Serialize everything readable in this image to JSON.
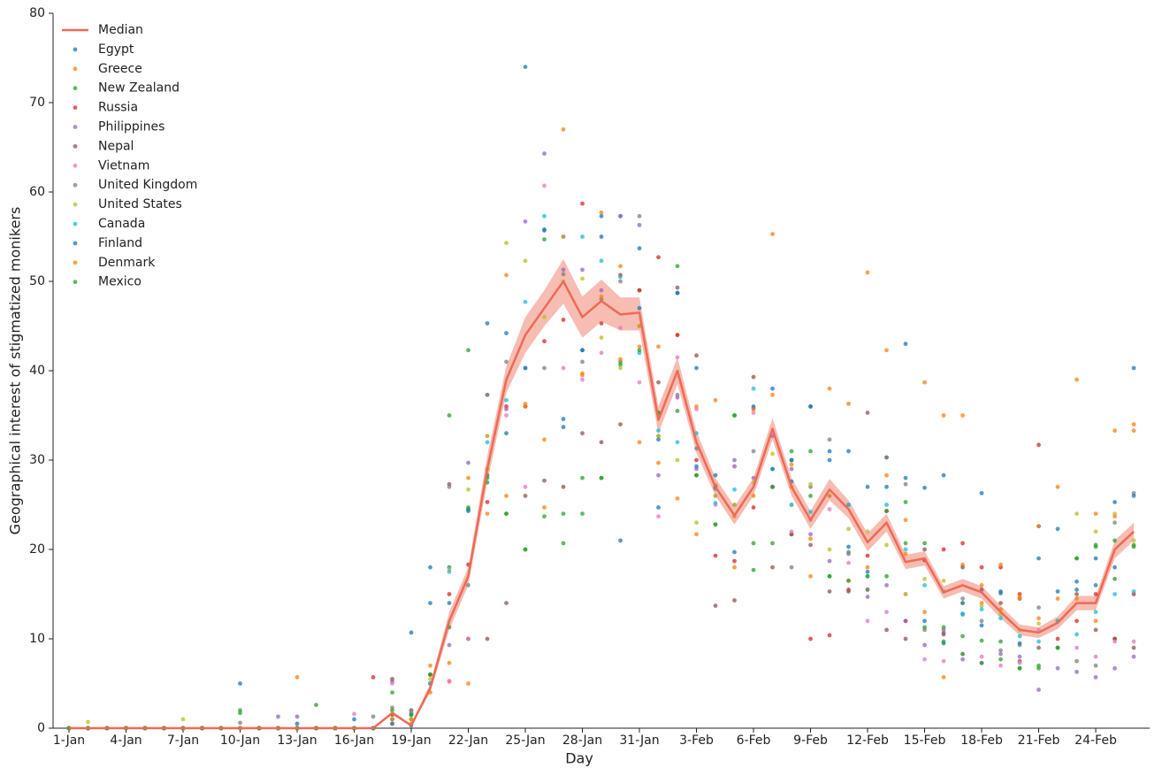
{
  "chart_data": {
    "type": "scatter",
    "xlabel": "Day",
    "ylabel": "Geographical interest of stigmatized monikers",
    "categories": [
      "1-Jan",
      null,
      null,
      "4-Jan",
      null,
      null,
      "7-Jan",
      null,
      null,
      "10-Jan",
      null,
      null,
      "13-Jan",
      null,
      null,
      "16-Jan",
      null,
      null,
      "19-Jan",
      null,
      null,
      "22-Jan",
      null,
      null,
      "25-Jan",
      null,
      null,
      "28-Jan",
      null,
      null,
      "31-Jan",
      null,
      null,
      "3-Feb",
      null,
      null,
      "6-Feb",
      null,
      null,
      "9-Feb",
      null,
      null,
      "12-Feb",
      null,
      null,
      "15-Feb",
      null,
      null,
      "18-Feb",
      null,
      null,
      "21-Feb",
      null,
      null,
      "24-Feb",
      null,
      null
    ],
    "ylim": [
      0,
      80
    ],
    "yticks": [
      0,
      10,
      20,
      30,
      40,
      50,
      60,
      70,
      80
    ],
    "legend": "upper left",
    "median": {
      "name": "Median",
      "color": "#ee6a55",
      "values": [
        0,
        0,
        0,
        0,
        0,
        0,
        0,
        0,
        0,
        0,
        0,
        0,
        0,
        0,
        0,
        0,
        0,
        1.7,
        0.3,
        4.5,
        12,
        17,
        29,
        39,
        44,
        47,
        50,
        46,
        47.8,
        46.3,
        46.5,
        34.5,
        40,
        32,
        27,
        23.8,
        27,
        33.5,
        27,
        23.3,
        26.7,
        24.5,
        20.8,
        23,
        18.6,
        19,
        15.2,
        16,
        15.2,
        13,
        11,
        10.7,
        11.8,
        14,
        14,
        20,
        22
      ]
    },
    "band": {
      "lower": [
        0,
        0,
        0,
        0,
        0,
        0,
        0,
        0,
        0,
        0,
        0,
        0,
        0,
        0,
        0,
        0,
        0,
        1.5,
        0.2,
        4,
        11,
        16,
        27.5,
        37.5,
        42,
        45,
        47.5,
        43.7,
        45.5,
        44.5,
        44.5,
        33,
        38.5,
        30.8,
        26,
        22.8,
        26,
        32.3,
        26,
        22.3,
        25.5,
        23.5,
        19.8,
        22,
        17.8,
        18.2,
        14.5,
        15.3,
        14.5,
        12.3,
        10.4,
        10.1,
        11.1,
        13.2,
        13.2,
        19,
        21
      ],
      "upper": [
        0,
        0,
        0,
        0,
        0,
        0,
        0,
        0,
        0,
        0,
        0,
        0,
        0,
        0,
        0,
        0,
        0,
        1.9,
        0.4,
        5,
        13,
        18,
        30.5,
        40.5,
        46,
        49,
        52.5,
        48.3,
        50.2,
        48.2,
        48.2,
        36,
        41.5,
        33.2,
        28,
        24.8,
        28,
        34.7,
        28,
        24.3,
        27.9,
        25.5,
        21.8,
        24,
        19.4,
        19.8,
        15.9,
        16.7,
        15.9,
        13.7,
        11.6,
        11.3,
        12.5,
        14.8,
        14.8,
        21,
        23
      ]
    },
    "series": [
      {
        "name": "Egypt",
        "color": "#1f77b4",
        "values": [
          0,
          0,
          0,
          0,
          0,
          0,
          0,
          0,
          0,
          5,
          0,
          0,
          0,
          0,
          0,
          0,
          0,
          1,
          10.7,
          14,
          18,
          24.5,
          45.3,
          44.2,
          74,
          55.8,
          34.6,
          42.3,
          55,
          57.3,
          53.7,
          24.7,
          48.7,
          40.3,
          28.3,
          29.3,
          36,
          38,
          27.6,
          36,
          30,
          31,
          27,
          30.3,
          43,
          26.9,
          28.3,
          12.8,
          26.3,
          15.1,
          14.5,
          22.6,
          15.3,
          16.4,
          19,
          25.3,
          40.3
        ]
      },
      {
        "name": "Greece",
        "color": "#ff7f0e",
        "values": [
          0,
          0,
          0,
          0,
          0,
          0,
          0,
          0,
          0,
          0,
          0,
          0,
          5.7,
          0,
          0,
          0,
          0,
          0.5,
          1,
          7,
          5.2,
          5,
          24,
          50.7,
          36.3,
          32.3,
          67,
          39.5,
          57.7,
          51.7,
          42.7,
          29.7,
          44,
          36,
          27.2,
          18,
          26,
          37.3,
          29.5,
          21.2,
          38,
          36.3,
          51,
          42.3,
          23.3,
          38.7,
          35,
          18.3,
          14,
          13.3,
          14.5,
          22.6,
          27,
          39,
          24,
          33.3,
          34
        ]
      },
      {
        "name": "New Zealand",
        "color": "#2ca02c",
        "values": [
          0,
          0,
          0,
          0,
          0,
          0,
          0,
          0,
          0,
          2,
          0,
          0,
          0,
          2.6,
          0,
          0,
          0,
          4,
          1.7,
          6,
          35,
          42.3,
          27.5,
          24,
          20,
          54.7,
          20.7,
          24,
          28,
          41,
          49,
          35.3,
          51.7,
          28.3,
          22.8,
          35,
          17.7,
          20.7,
          30,
          31,
          17,
          19.7,
          15.5,
          17,
          25.3,
          20.7,
          11.3,
          10.3,
          9.8,
          7.7,
          6.7,
          6.7,
          9,
          19,
          20.5,
          16.7,
          20.5
        ]
      },
      {
        "name": "Russia",
        "color": "#d62728",
        "values": [
          0,
          0,
          0,
          0,
          0,
          0,
          0,
          0,
          0,
          0,
          0,
          0,
          0,
          0,
          0,
          0,
          5.7,
          1.5,
          1,
          6,
          15,
          18.3,
          25.3,
          36,
          36,
          43.3,
          45.7,
          58.7,
          45.3,
          50.7,
          49,
          52.7,
          44,
          30,
          19.3,
          18.7,
          24.7,
          27,
          21.7,
          10,
          10.4,
          15.5,
          19.3,
          24.3,
          12,
          18.8,
          20,
          20.7,
          18,
          18,
          15,
          31.7,
          10,
          12,
          15,
          10,
          15
        ]
      },
      {
        "name": "Philippines",
        "color": "#9467bd",
        "values": [
          0,
          0,
          0,
          0,
          0,
          0,
          0,
          0,
          0,
          0,
          0,
          1.3,
          1.3,
          0,
          0,
          0,
          0,
          5.2,
          2,
          5,
          9.3,
          29.7,
          37.3,
          35.7,
          56.7,
          64.3,
          51.3,
          51.3,
          49,
          57.3,
          56.3,
          28.3,
          37,
          29,
          26,
          30,
          28,
          32.7,
          29,
          21.7,
          18.7,
          19.5,
          14.7,
          16,
          12,
          9.3,
          10.7,
          7.7,
          7.3,
          8.3,
          8,
          4.3,
          6.7,
          6.3,
          5.7,
          6.7,
          8
        ]
      },
      {
        "name": "Nepal",
        "color": "#8c564b",
        "values": [
          0,
          0,
          0,
          0,
          0,
          0,
          0,
          0,
          0,
          0,
          0,
          0,
          0,
          0,
          0,
          0,
          0,
          5.5,
          1.5,
          5,
          27.3,
          10,
          10,
          14,
          26,
          27.7,
          27,
          33,
          32,
          34,
          45,
          38.7,
          49.3,
          41.7,
          13.7,
          14.3,
          39.3,
          18,
          21.7,
          20.5,
          15.3,
          15.3,
          35.3,
          11,
          10,
          20,
          10.5,
          18,
          15.5,
          14,
          7.5,
          9,
          12,
          15,
          11,
          10,
          9
        ]
      },
      {
        "name": "Vietnam",
        "color": "#e377c2",
        "values": [
          0,
          0,
          0,
          0,
          0,
          0,
          0,
          0,
          0,
          0,
          0,
          0,
          0,
          0,
          0,
          1.6,
          0,
          5,
          2,
          5,
          5.3,
          10,
          32.7,
          35,
          27,
          60.7,
          40.3,
          39,
          42,
          44.8,
          38.7,
          23.7,
          41.5,
          35.7,
          25,
          29.3,
          35.3,
          27,
          22,
          23.3,
          24.5,
          18.5,
          12,
          13,
          15,
          7.7,
          7.5,
          8.3,
          8,
          7,
          7.3,
          11,
          12,
          9,
          8,
          9.7,
          9.7
        ]
      },
      {
        "name": "United Kingdom",
        "color": "#7f7f7f",
        "values": [
          0,
          0,
          0,
          0,
          0,
          0,
          0,
          0,
          0,
          0.6,
          0,
          0,
          0,
          0,
          0,
          0,
          1.3,
          2.3,
          2,
          5,
          27,
          16,
          37.3,
          41,
          40.3,
          40.3,
          50.8,
          41,
          48,
          50,
          57.3,
          32.7,
          37.3,
          31.3,
          26.8,
          25,
          31,
          27,
          18,
          27,
          32.3,
          25,
          15.5,
          30.3,
          27.3,
          11,
          11,
          14.5,
          12,
          8.7,
          9.3,
          13.5,
          9,
          7.5,
          7,
          23,
          26.3
        ]
      },
      {
        "name": "United States",
        "color": "#bcbd22",
        "values": [
          0,
          0.7,
          0,
          0,
          0,
          0,
          1,
          0,
          0,
          0,
          0,
          0,
          0,
          0,
          0,
          0,
          0,
          1,
          1,
          5.5,
          17.8,
          26.7,
          32.7,
          54.3,
          52.3,
          46,
          50,
          50.3,
          43.7,
          40.3,
          45,
          32.7,
          30,
          23,
          26,
          25,
          27.5,
          30.7,
          25,
          27.3,
          20,
          22.3,
          22,
          20.5,
          15,
          16.7,
          16.5,
          14,
          13.7,
          12.7,
          11,
          11.7,
          12,
          24,
          22,
          24,
          21
        ]
      },
      {
        "name": "Canada",
        "color": "#17becf",
        "values": [
          0,
          0,
          0,
          0,
          0,
          0,
          0,
          0,
          0,
          0,
          0,
          0,
          0,
          0,
          0,
          0,
          0,
          1,
          1.5,
          5,
          17.5,
          24.5,
          32,
          36.7,
          47.7,
          57.3,
          55,
          55,
          52.3,
          50.5,
          42,
          33.3,
          32,
          33,
          25.2,
          26.7,
          38,
          29,
          25,
          24.2,
          26,
          25,
          17,
          25,
          20,
          16,
          15.3,
          12.7,
          13.3,
          12.3,
          10.3,
          9.7,
          12,
          10.5,
          13,
          15,
          15.3
        ]
      },
      {
        "name": "Finland",
        "color": "#1f77b4",
        "values": [
          0,
          0,
          0,
          0,
          0,
          0,
          0,
          0,
          0,
          0,
          0,
          0,
          0.5,
          0,
          0,
          1,
          0,
          0.5,
          0.3,
          18,
          14,
          24.3,
          28.3,
          33,
          40.3,
          55.7,
          33.7,
          42.3,
          57.3,
          21,
          47,
          32.3,
          48.7,
          29.3,
          27,
          19.7,
          35.8,
          29,
          30,
          36,
          31,
          20.3,
          17.5,
          27,
          28,
          12,
          9.5,
          14,
          11.5,
          15.3,
          9.5,
          19,
          22.3,
          15.5,
          16,
          18,
          26
        ]
      },
      {
        "name": "Denmark",
        "color": "#ff7f0e",
        "values": [
          0,
          0,
          0,
          0,
          0,
          0,
          0,
          0,
          0,
          0,
          0,
          0,
          0,
          0,
          0,
          0,
          0,
          1,
          0.5,
          4,
          7.3,
          28,
          29,
          26,
          36,
          24.7,
          55,
          39.7,
          48.3,
          41.3,
          32,
          42.7,
          25.7,
          21.7,
          36.7,
          23.7,
          35.7,
          55.3,
          27,
          17,
          26,
          16.5,
          18,
          28.3,
          19.5,
          13,
          5.7,
          35,
          16,
          18.3,
          14.7,
          12.3,
          14.5,
          14.5,
          12,
          23.7,
          33.3
        ]
      },
      {
        "name": "Mexico",
        "color": "#2ca02c",
        "values": [
          0,
          0,
          0,
          0,
          0,
          0,
          0,
          0,
          0,
          1.7,
          0,
          0,
          0,
          0,
          0,
          0,
          0,
          2,
          1.5,
          6,
          11.3,
          24.7,
          28,
          24,
          20,
          23.7,
          24,
          28,
          28,
          40.7,
          42.3,
          35.3,
          35.5,
          28.3,
          22.8,
          35,
          20.7,
          27,
          31,
          26,
          17,
          16.5,
          17,
          24.3,
          20.7,
          11.3,
          9.7,
          8.3,
          7.3,
          9.7,
          6.7,
          7,
          9,
          19,
          20.3,
          21,
          20.3
        ]
      }
    ]
  }
}
